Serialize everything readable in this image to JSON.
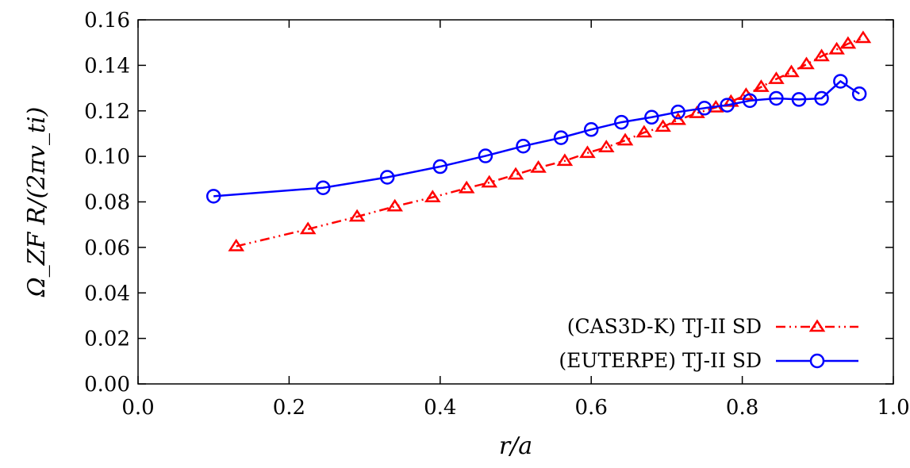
{
  "chart_data": {
    "type": "line",
    "xlabel": "r/a",
    "ylabel": "Ω_ZF R/(2πv_ti)",
    "xlim": [
      0.0,
      1.0
    ],
    "ylim": [
      0.0,
      0.16
    ],
    "x_ticks": [
      "0.0",
      "0.2",
      "0.4",
      "0.6",
      "0.8",
      "1.0"
    ],
    "y_ticks": [
      "0.00",
      "0.02",
      "0.04",
      "0.06",
      "0.08",
      "0.10",
      "0.12",
      "0.14",
      "0.16"
    ],
    "grid": false,
    "legend_position": "bottom-right",
    "series": [
      {
        "name": "(CAS3D-K) TJ-II SD",
        "color": "#ff0000",
        "marker": "triangle",
        "line_style": "dash-dot-dot",
        "x": [
          0.13,
          0.225,
          0.29,
          0.34,
          0.39,
          0.435,
          0.465,
          0.5,
          0.53,
          0.565,
          0.595,
          0.62,
          0.645,
          0.67,
          0.695,
          0.715,
          0.74,
          0.765,
          0.785,
          0.805,
          0.825,
          0.845,
          0.865,
          0.885,
          0.905,
          0.925,
          0.94,
          0.96
        ],
        "y": [
          0.0605,
          0.068,
          0.0735,
          0.078,
          0.082,
          0.086,
          0.0885,
          0.092,
          0.095,
          0.098,
          0.1015,
          0.104,
          0.107,
          0.1105,
          0.113,
          0.116,
          0.119,
          0.1215,
          0.124,
          0.127,
          0.1305,
          0.134,
          0.137,
          0.1405,
          0.144,
          0.147,
          0.1495,
          0.152
        ]
      },
      {
        "name": "(EUTERPE) TJ-II SD",
        "color": "#0000ff",
        "marker": "circle",
        "line_style": "solid",
        "x": [
          0.1,
          0.245,
          0.33,
          0.4,
          0.46,
          0.51,
          0.56,
          0.6,
          0.64,
          0.68,
          0.715,
          0.75,
          0.78,
          0.81,
          0.845,
          0.875,
          0.905,
          0.93,
          0.955
        ],
        "y": [
          0.0825,
          0.0862,
          0.0908,
          0.0955,
          0.1002,
          0.1045,
          0.1082,
          0.1118,
          0.115,
          0.1172,
          0.1195,
          0.1212,
          0.1225,
          0.1245,
          0.1255,
          0.125,
          0.1255,
          0.133,
          0.1275
        ]
      }
    ]
  }
}
